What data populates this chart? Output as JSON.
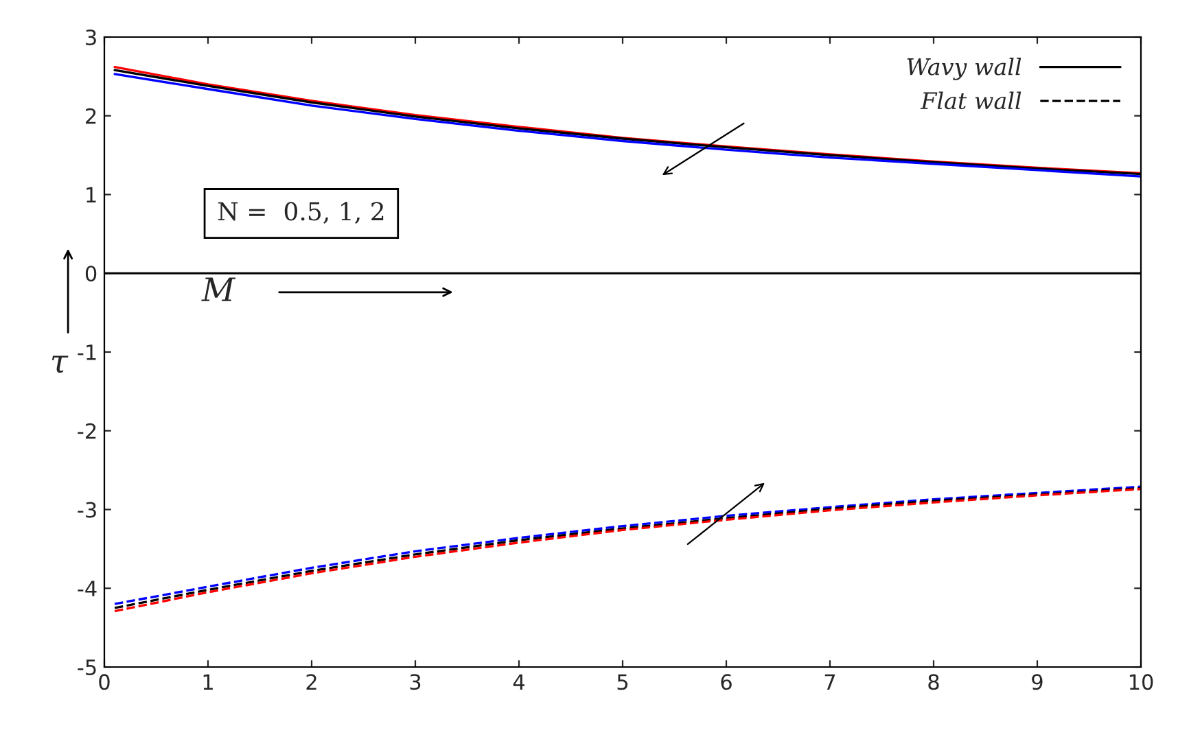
{
  "chart_data": {
    "type": "line",
    "xlabel": "M",
    "ylabel": "τ",
    "x": [
      0.1,
      1,
      2,
      3,
      4,
      5,
      6,
      7,
      8,
      9,
      10
    ],
    "series": [
      {
        "color": "#ff0000",
        "line_style": "solid",
        "values": [
          2.62,
          2.4,
          2.19,
          2.01,
          1.86,
          1.72,
          1.61,
          1.51,
          1.42,
          1.34,
          1.27
        ]
      },
      {
        "name": "Wavy wall",
        "color": "#000000",
        "line_style": "solid",
        "values": [
          2.58,
          2.38,
          2.17,
          1.99,
          1.84,
          1.71,
          1.6,
          1.5,
          1.41,
          1.33,
          1.26
        ]
      },
      {
        "color": "#0000ff",
        "line_style": "solid",
        "values": [
          2.53,
          2.34,
          2.13,
          1.96,
          1.81,
          1.68,
          1.57,
          1.47,
          1.39,
          1.31,
          1.23
        ]
      },
      {
        "color": "#0000ff",
        "line_style": "dashed",
        "values": [
          -4.2,
          -3.98,
          -3.74,
          -3.53,
          -3.36,
          -3.21,
          -3.08,
          -2.97,
          -2.87,
          -2.79,
          -2.71
        ]
      },
      {
        "name": "Flat wall",
        "color": "#000000",
        "line_style": "dashed",
        "values": [
          -4.25,
          -4.02,
          -3.78,
          -3.57,
          -3.39,
          -3.24,
          -3.11,
          -2.99,
          -2.89,
          -2.81,
          -2.73
        ]
      },
      {
        "color": "#ff0000",
        "line_style": "dashed",
        "values": [
          -4.29,
          -4.05,
          -3.81,
          -3.6,
          -3.42,
          -3.26,
          -3.13,
          -3.01,
          -2.91,
          -2.82,
          -2.74
        ]
      }
    ],
    "xlim": [
      0,
      10
    ],
    "ylim": [
      -5,
      3
    ],
    "xticks": [
      0,
      1,
      2,
      3,
      4,
      5,
      6,
      7,
      8,
      9,
      10
    ],
    "yticks": [
      -5,
      -4,
      -3,
      -2,
      -1,
      0,
      1,
      2,
      3
    ],
    "ref_lines": [
      {
        "axis": "y",
        "value": 0,
        "color": "#000000"
      }
    ],
    "annotations": [
      "N =  0.5, 1, 2"
    ],
    "grid": false,
    "legend": "top right",
    "marker": "none"
  }
}
